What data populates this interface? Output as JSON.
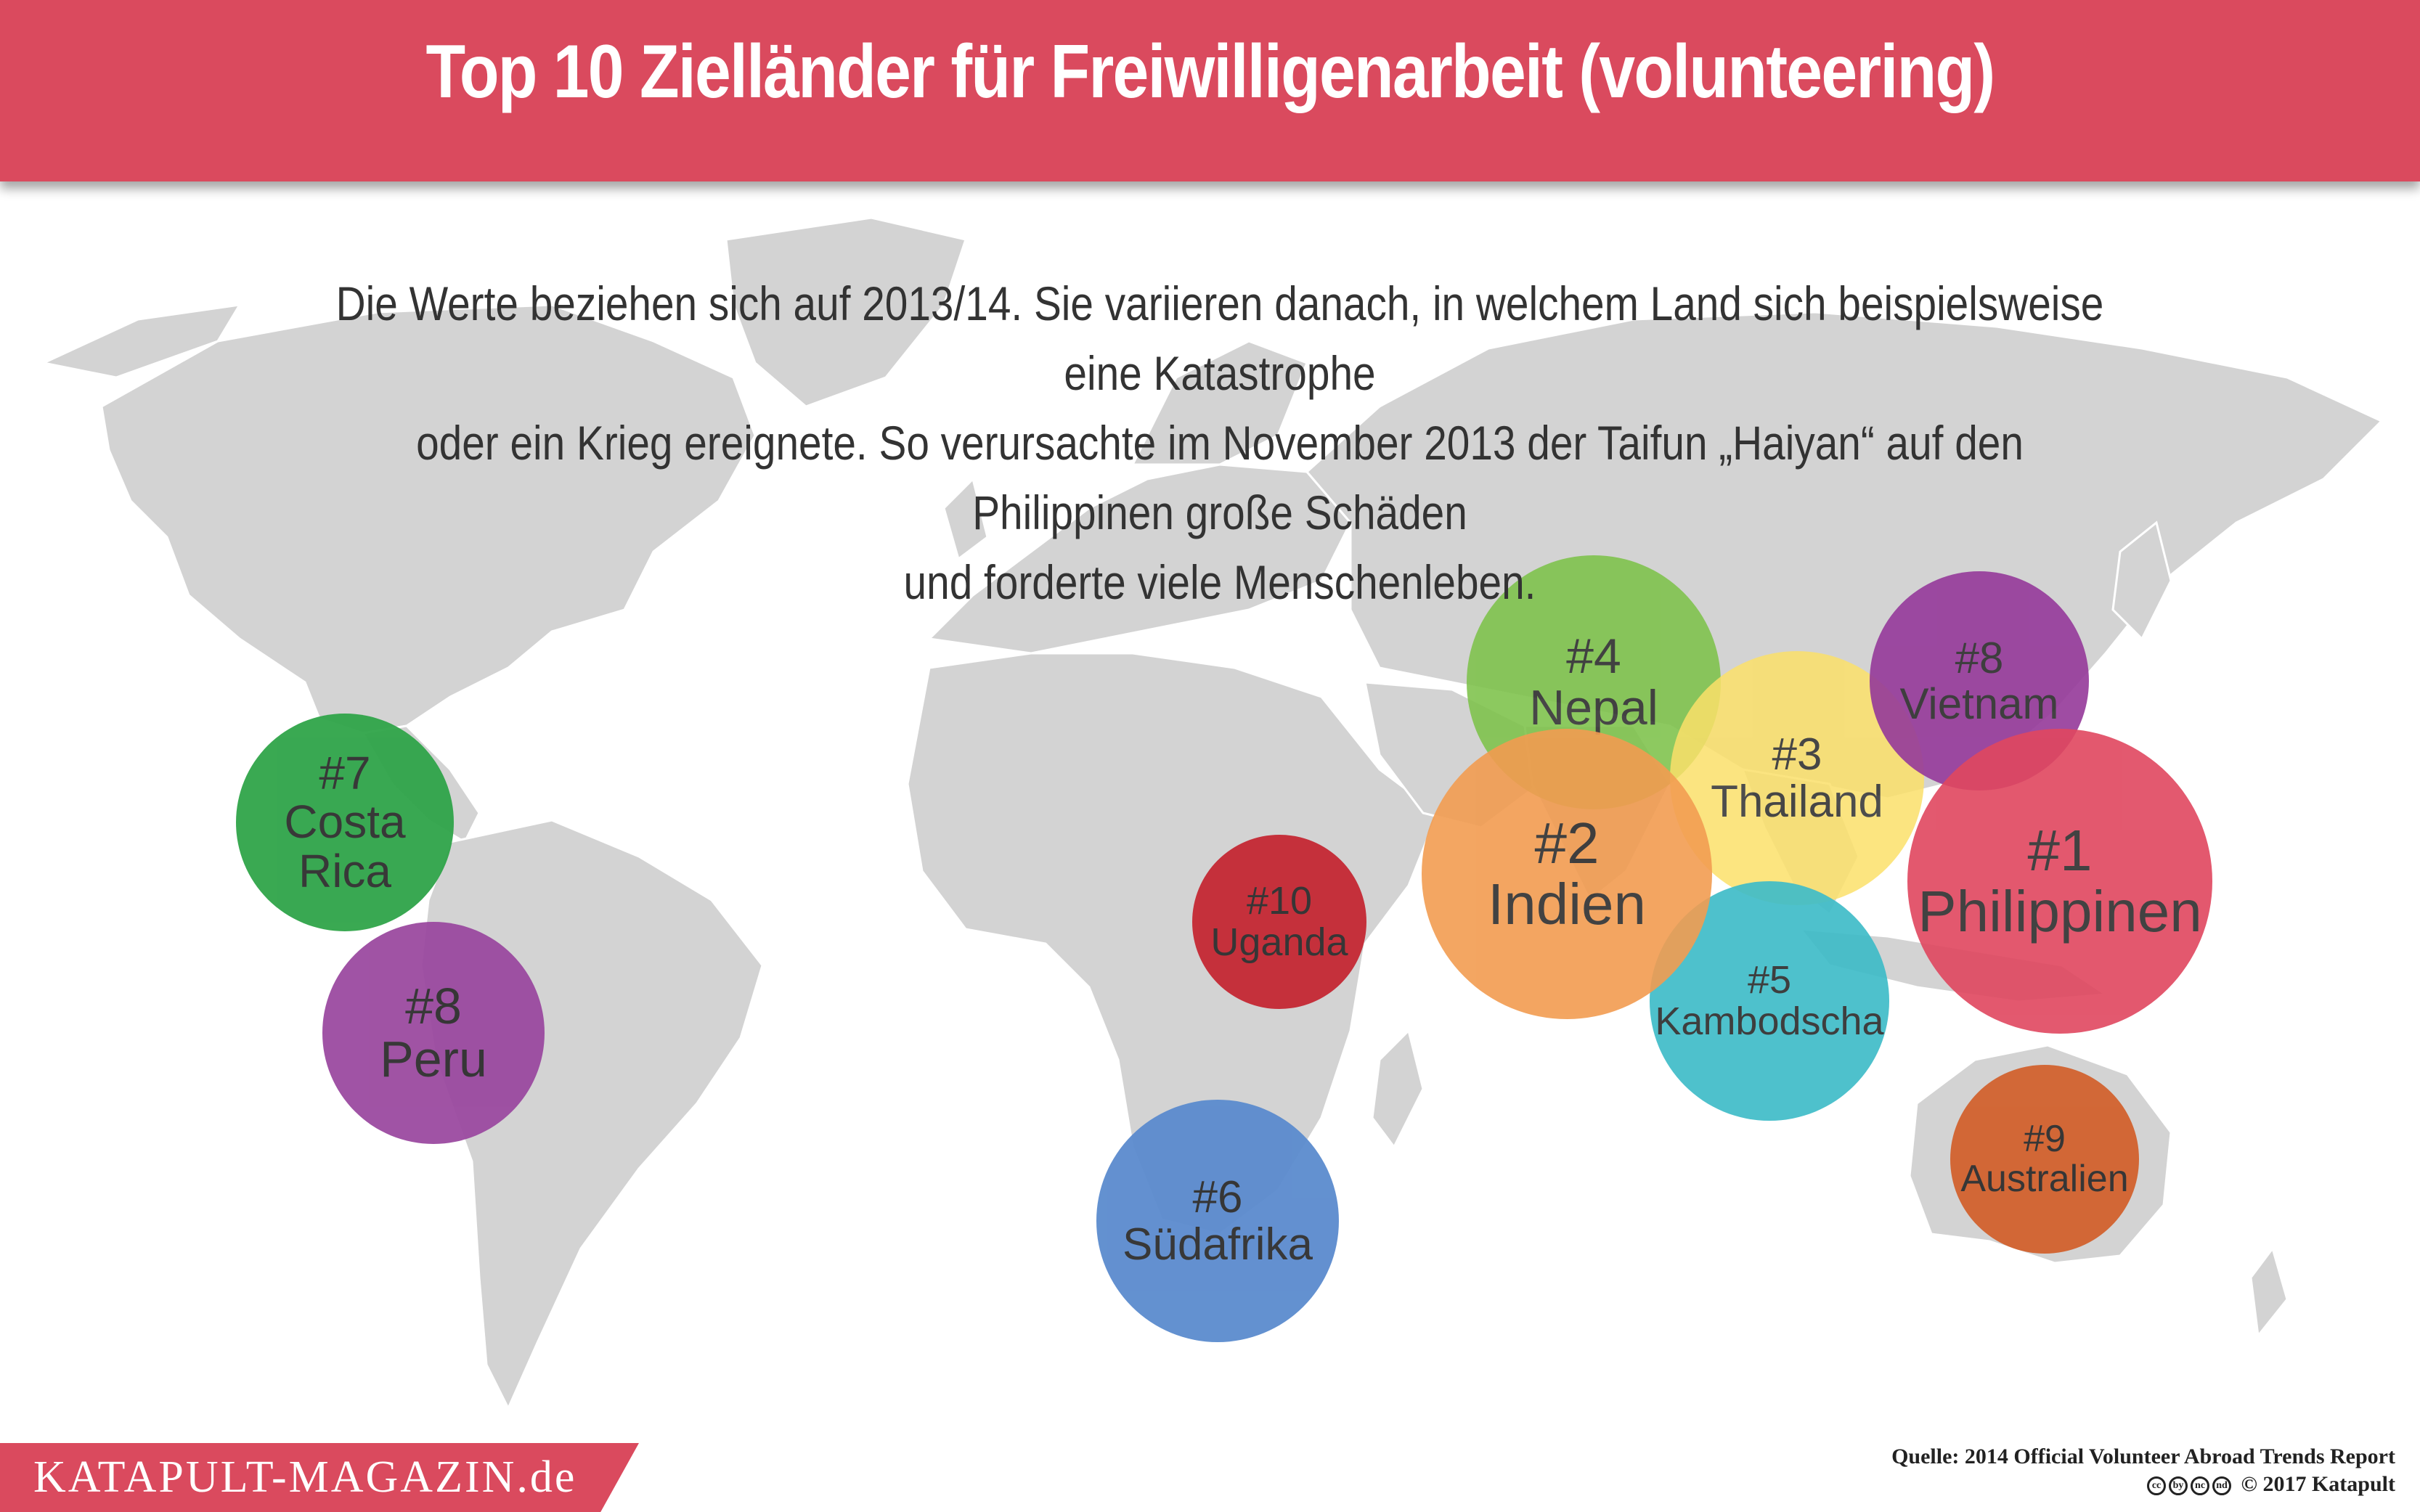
{
  "header": {
    "title": "Top 10 Zielländer für Freiwilligenarbeit (volunteering)",
    "bar_color": "#da4a5e"
  },
  "intro": {
    "lines": [
      "Die Werte beziehen sich auf 2013/14. Sie variieren danach, in welchem Land sich beispielsweise eine Katastrophe",
      "oder ein Krieg ereignete. So verursachte im November 2013 der Taifun „Haiyan“ auf den Philippinen große Schäden",
      "und forderte viele Menschenleben."
    ]
  },
  "map": {
    "land_color": "#d3d3d3",
    "ocean_color": "#ffffff"
  },
  "countries": [
    {
      "rank": "#1",
      "name": "Philippinen",
      "color": "#e0475f"
    },
    {
      "rank": "#2",
      "name": "Indien",
      "color": "#f29c51"
    },
    {
      "rank": "#3",
      "name": "Thailand",
      "color": "#fbe06a"
    },
    {
      "rank": "#4",
      "name": "Nepal",
      "color": "#7dc24a"
    },
    {
      "rank": "#5",
      "name": "Kambodscha",
      "color": "#3fbcc8"
    },
    {
      "rank": "#6",
      "name": "Südafrika",
      "color": "#5b8bce"
    },
    {
      "rank": "#7",
      "name": "Costa Rica",
      "color": "#2fa449"
    },
    {
      "rank": "#8",
      "name": "Vietnam",
      "color": "#95399a"
    },
    {
      "rank": "#8",
      "name": "Peru",
      "color": "#9b4aa0"
    },
    {
      "rank": "#9",
      "name": "Australien",
      "color": "#d2622e"
    },
    {
      "rank": "#10",
      "name": "Uganda",
      "color": "#c52833"
    }
  ],
  "footer": {
    "brand": "KATAPULT-MAGAZIN.de",
    "source": "Quelle: 2014 Official Volunteer Abroad Trends Report",
    "license_icons": [
      "cc",
      "by",
      "nc",
      "nd"
    ],
    "copyright": "2017 Katapult"
  }
}
